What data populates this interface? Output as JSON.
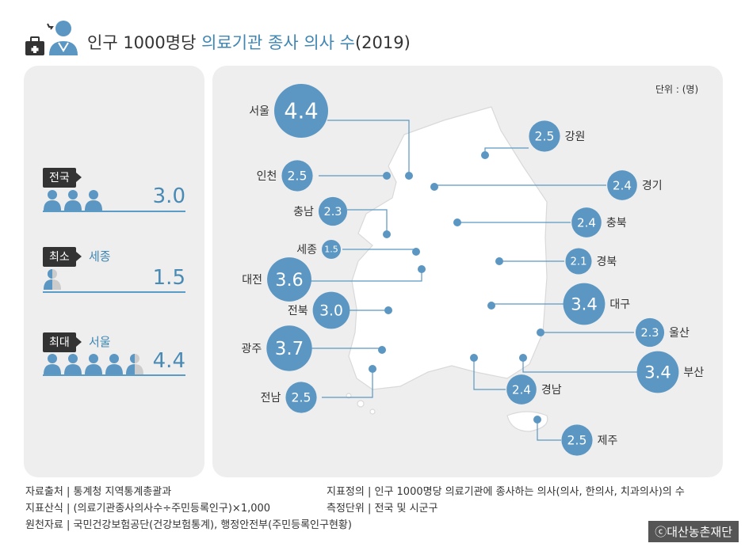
{
  "header": {
    "title_prefix": "인구 1000명당 ",
    "title_accent": "의료기관 종사 의사 수",
    "title_suffix": "(2019)"
  },
  "summary": {
    "national": {
      "label": "전국",
      "value": "3.0",
      "region": ""
    },
    "min": {
      "label": "최소",
      "value": "1.5",
      "region": "세종"
    },
    "max": {
      "label": "최대",
      "value": "4.4",
      "region": "서울"
    }
  },
  "map": {
    "unit": "단위 : (명)"
  },
  "colors": {
    "accent": "#3f86b3",
    "bubble": "#5b97c2",
    "land": "#ffffff",
    "panel": "#eeeeee"
  },
  "chart_data": {
    "type": "bubble-map",
    "title": "인구 1000명당 의료기관 종사 의사 수(2019)",
    "unit": "명",
    "regions": [
      {
        "name": "서울",
        "value": 4.4
      },
      {
        "name": "인천",
        "value": 2.5
      },
      {
        "name": "강원",
        "value": 2.5
      },
      {
        "name": "경기",
        "value": 2.4
      },
      {
        "name": "충남",
        "value": 2.3
      },
      {
        "name": "충북",
        "value": 2.4
      },
      {
        "name": "세종",
        "value": 1.5
      },
      {
        "name": "경북",
        "value": 2.1
      },
      {
        "name": "대전",
        "value": 3.6
      },
      {
        "name": "전북",
        "value": 3.0
      },
      {
        "name": "대구",
        "value": 3.4
      },
      {
        "name": "울산",
        "value": 2.3
      },
      {
        "name": "광주",
        "value": 3.7
      },
      {
        "name": "부산",
        "value": 3.4
      },
      {
        "name": "경남",
        "value": 2.4
      },
      {
        "name": "전남",
        "value": 2.5
      },
      {
        "name": "제주",
        "value": 2.5
      }
    ]
  },
  "footer": {
    "source_label": "자료출처 | 통계청 지역통계총괄과",
    "formula_label": "지표산식 | (의료기관종사의사수÷주민등록인구)×1,000",
    "origin_label": "원천자료 | 국민건강보험공단(건강보험통계), 행정안전부(주민등록인구현황)",
    "definition_label": "지표정의 | 인구 1000명당 의료기관에 종사하는 의사(의사, 한의사, 치과의사)의 수",
    "scope_label": "측정단위 | 전국 및 시군구",
    "copyright": "ⓒ대산농촌재단"
  }
}
